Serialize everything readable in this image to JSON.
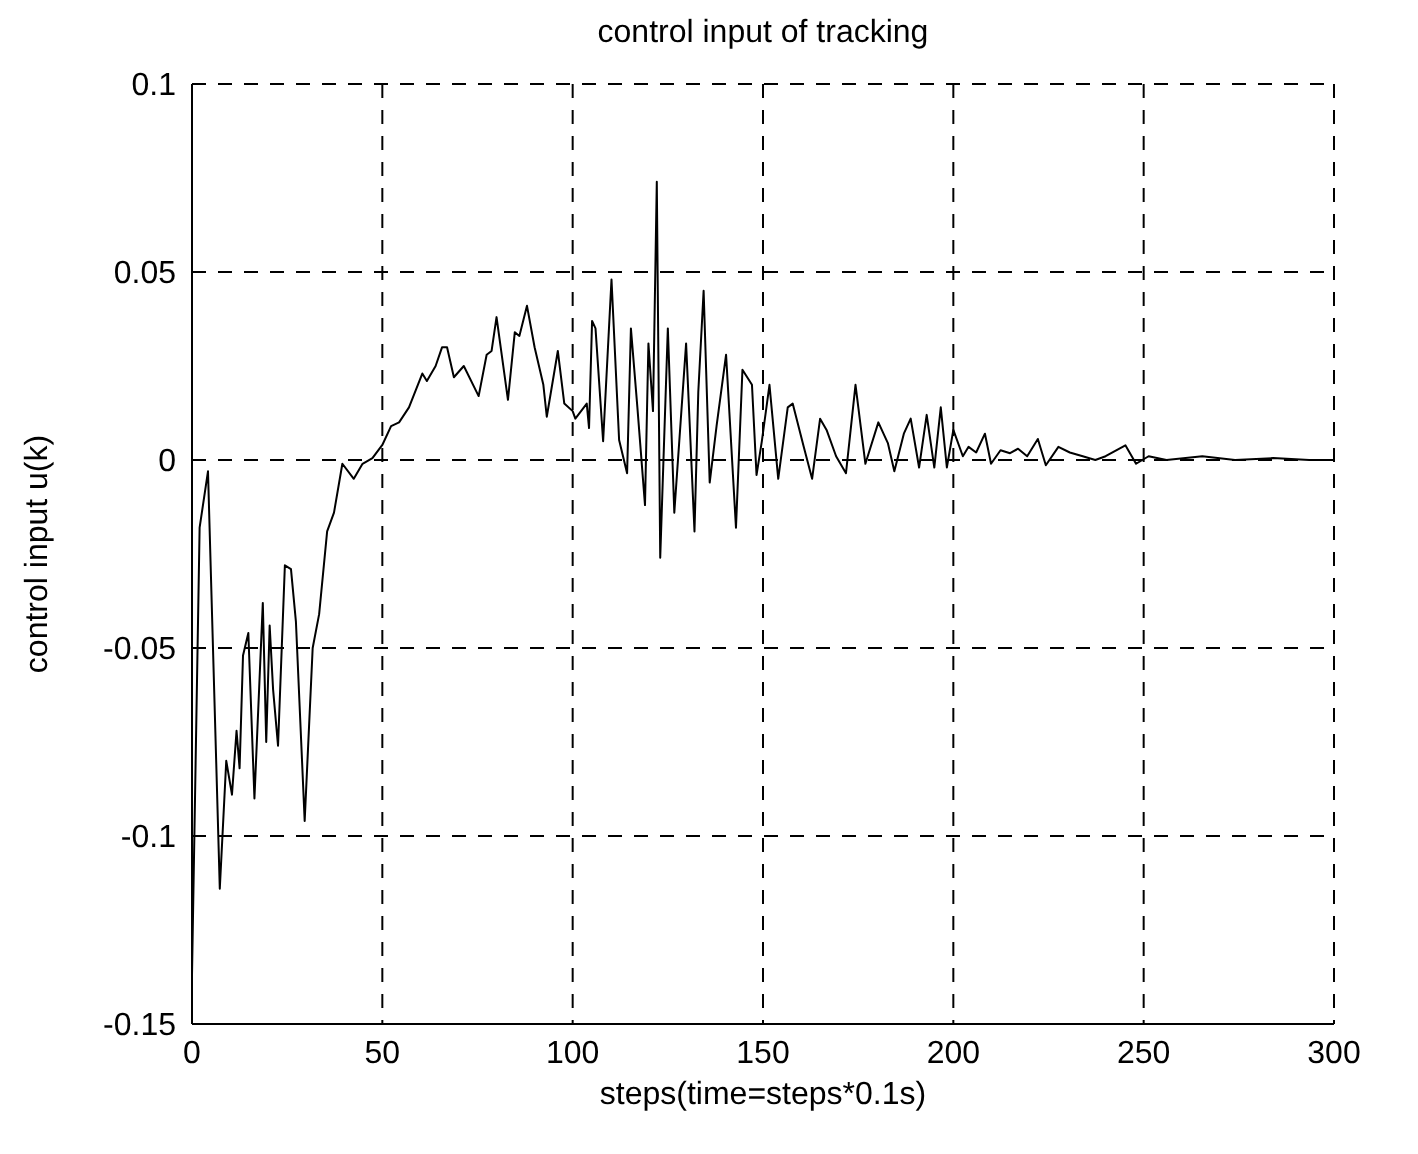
{
  "chart_data": {
    "type": "line",
    "title": "control input of tracking",
    "xlabel": "steps(time=steps*0.1s)",
    "ylabel": "control input u(k)",
    "xlim": [
      0,
      300
    ],
    "xticks": [
      0,
      50,
      100,
      150,
      200,
      250,
      300
    ],
    "ylim": [
      -0.15,
      0.1
    ],
    "yticks": [
      -0.15,
      -0.1,
      -0.05,
      0,
      0.05,
      0.1
    ],
    "grid": true,
    "marker": "none",
    "line_style": "solid",
    "series": [
      {
        "color": "#000000",
        "x": [
          0,
          2,
          4.2,
          7.3,
          9,
          10.5,
          11.7,
          12.5,
          13.4,
          14.8,
          16.4,
          18.6,
          19.5,
          20.4,
          21.3,
          22.6,
          24.4,
          26,
          27.3,
          29.6,
          31.7,
          33.4,
          35.5,
          37.3,
          39.5,
          42.5,
          44.8,
          47.4,
          50,
          52.3,
          54.4,
          57,
          60.5,
          61.7,
          64,
          65.7,
          67,
          68.8,
          71.4,
          75.3,
          77.4,
          78.7,
          80,
          83,
          84.8,
          86,
          88,
          90,
          92.3,
          93.2,
          96.1,
          97.8,
          100,
          100.7,
          103.7,
          104.3,
          105.1,
          106,
          108,
          110.2,
          112.2,
          114.3,
          115.3,
          117,
          119,
          119.9,
          121.1,
          122.1,
          123,
          125,
          126.7,
          129.8,
          132,
          133,
          134.4,
          136,
          137.8,
          140.3,
          142.9,
          144.6,
          147.1,
          148.3,
          149.7,
          151.7,
          154,
          156.5,
          157.8,
          160.7,
          162.9,
          165,
          166.7,
          169.2,
          171.8,
          174.3,
          176.9,
          180.3,
          182.8,
          184.5,
          187,
          188.8,
          191,
          193,
          195,
          196.7,
          198.3,
          200,
          202.5,
          204,
          206,
          208.3,
          209.9,
          212.4,
          214.9,
          217,
          219.4,
          222.2,
          224.3,
          227.6,
          230.6,
          234,
          237.3,
          240,
          245.2,
          248,
          251.3,
          256,
          265.4,
          274,
          284,
          293.5,
          300
        ],
        "values": [
          -0.137,
          -0.018,
          -0.003,
          -0.114,
          -0.08,
          -0.089,
          -0.072,
          -0.082,
          -0.052,
          -0.046,
          -0.09,
          -0.038,
          -0.075,
          -0.044,
          -0.061,
          -0.076,
          -0.028,
          -0.029,
          -0.043,
          -0.096,
          -0.05,
          -0.041,
          -0.019,
          -0.014,
          -0.001,
          -0.005,
          -0.001,
          0.0005,
          0.004,
          0.009,
          0.01,
          0.014,
          0.023,
          0.021,
          0.025,
          0.03,
          0.03,
          0.022,
          0.025,
          0.017,
          0.028,
          0.029,
          0.038,
          0.016,
          0.034,
          0.033,
          0.041,
          0.03,
          0.02,
          0.0115,
          0.029,
          0.015,
          0.013,
          0.011,
          0.015,
          0.0085,
          0.037,
          0.035,
          0.005,
          0.048,
          0.0053,
          -0.0035,
          0.035,
          0.014,
          -0.012,
          0.031,
          0.013,
          0.074,
          -0.026,
          0.035,
          -0.014,
          0.031,
          -0.019,
          0.018,
          0.045,
          -0.006,
          0.009,
          0.028,
          -0.018,
          0.024,
          0.02,
          -0.004,
          0.005,
          0.02,
          -0.005,
          0.014,
          0.015,
          0.0035,
          -0.005,
          0.011,
          0.008,
          0.001,
          -0.0035,
          0.02,
          -0.001,
          0.01,
          0.0045,
          -0.003,
          0.007,
          0.011,
          -0.002,
          0.012,
          -0.002,
          0.014,
          -0.002,
          0.008,
          0.001,
          0.0035,
          0.002,
          0.007,
          -0.001,
          0.0026,
          0.0018,
          0.003,
          0.001,
          0.0056,
          -0.0014,
          0.0035,
          0.002,
          0.001,
          0,
          0.001,
          0.0039,
          -0.001,
          0.001,
          0,
          0.001,
          0,
          0.0005,
          0,
          0
        ]
      }
    ]
  }
}
